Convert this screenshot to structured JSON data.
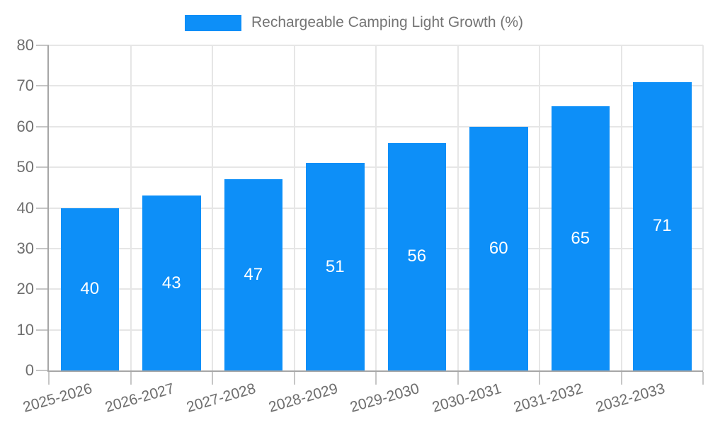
{
  "page": {
    "background": "#ffffff"
  },
  "chart_data": {
    "type": "bar",
    "title": "Rechargeable Camping Light Growth (%)",
    "legend": {
      "label": "Rechargeable Camping Light Growth (%)",
      "position": "top",
      "swatch_color": "#0d8ff8"
    },
    "categories": [
      "2025-2026",
      "2026-2027",
      "2027-2028",
      "2028-2029",
      "2029-2030",
      "2030-2031",
      "2031-2032",
      "2032-2033"
    ],
    "values": [
      40,
      43,
      47,
      51,
      56,
      60,
      65,
      71
    ],
    "xlabel": "",
    "ylabel": "",
    "ylim": [
      0,
      80
    ],
    "y_ticks": [
      0,
      10,
      20,
      30,
      40,
      50,
      60,
      70,
      80
    ],
    "grid": true,
    "x_tick_rotation_deg": -16,
    "colors": {
      "bar": "#0d8ff8",
      "value_label": "#ffffff",
      "tick_label": "#6e6e6e",
      "legend_label": "#757575",
      "grid": "#e6e6e6",
      "tick": "#c6c6c6",
      "axis": "#a6a6a6",
      "background": "#ffffff"
    }
  }
}
